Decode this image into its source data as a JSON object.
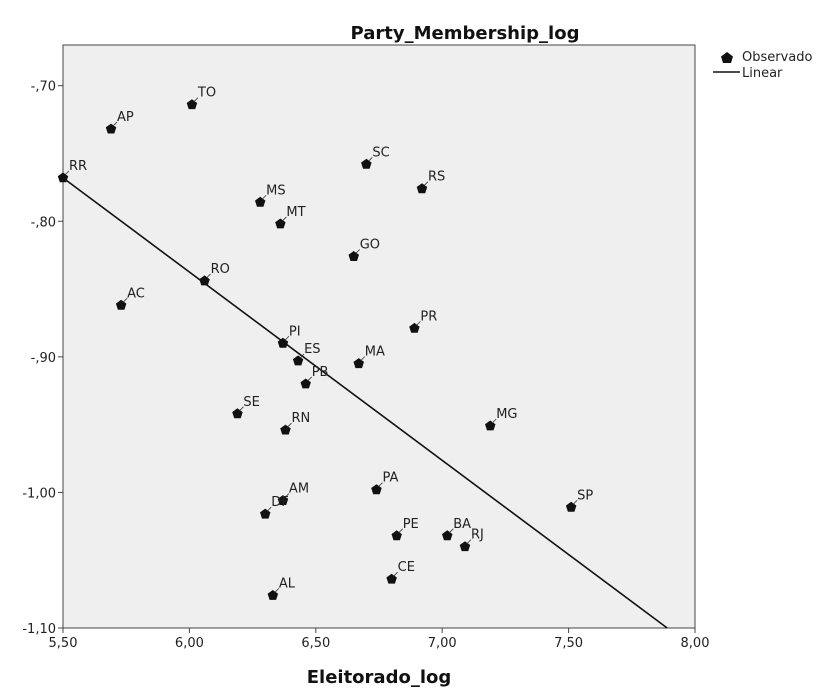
{
  "chart_data": {
    "type": "scatter",
    "title": "Party_Membership_log",
    "xlabel": "Eleitorado_log",
    "ylabel": "",
    "xlim": [
      5.5,
      8.0
    ],
    "ylim": [
      -1.1,
      -0.67
    ],
    "x_ticks": [
      5.5,
      6.0,
      6.5,
      7.0,
      7.5,
      8.0
    ],
    "x_tick_labels": [
      "5,50",
      "6,00",
      "6,50",
      "7,00",
      "7,50",
      "8,00"
    ],
    "y_ticks": [
      -0.7,
      -0.8,
      -0.9,
      -1.0,
      -1.1
    ],
    "y_tick_labels": [
      "-,70",
      "-,80",
      "-,90",
      "-1,00",
      "-1,10"
    ],
    "grid": false,
    "background": "#efefef",
    "legend": {
      "placement": "top-right-outside",
      "entries": [
        {
          "label": "Observado",
          "marker": "pentagon"
        },
        {
          "label": "Linear",
          "marker": "line"
        }
      ]
    },
    "points": [
      {
        "label": "TO",
        "x": 6.01,
        "y": -0.714
      },
      {
        "label": "AP",
        "x": 5.69,
        "y": -0.732
      },
      {
        "label": "RR",
        "x": 5.5,
        "y": -0.768
      },
      {
        "label": "SC",
        "x": 6.7,
        "y": -0.758
      },
      {
        "label": "RS",
        "x": 6.92,
        "y": -0.776
      },
      {
        "label": "MS",
        "x": 6.28,
        "y": -0.786
      },
      {
        "label": "MT",
        "x": 6.36,
        "y": -0.802
      },
      {
        "label": "GO",
        "x": 6.65,
        "y": -0.826
      },
      {
        "label": "RO",
        "x": 6.06,
        "y": -0.844
      },
      {
        "label": "AC",
        "x": 5.73,
        "y": -0.862
      },
      {
        "label": "PR",
        "x": 6.89,
        "y": -0.879
      },
      {
        "label": "PI",
        "x": 6.37,
        "y": -0.89
      },
      {
        "label": "ES",
        "x": 6.43,
        "y": -0.903
      },
      {
        "label": "MA",
        "x": 6.67,
        "y": -0.905
      },
      {
        "label": "PB",
        "x": 6.46,
        "y": -0.92
      },
      {
        "label": "SE",
        "x": 6.19,
        "y": -0.942
      },
      {
        "label": "RN",
        "x": 6.38,
        "y": -0.954
      },
      {
        "label": "MG",
        "x": 7.19,
        "y": -0.951
      },
      {
        "label": "PA",
        "x": 6.74,
        "y": -0.998
      },
      {
        "label": "AM",
        "x": 6.37,
        "y": -1.006
      },
      {
        "label": "DF",
        "x": 6.3,
        "y": -1.016
      },
      {
        "label": "SP",
        "x": 7.51,
        "y": -1.011
      },
      {
        "label": "PE",
        "x": 6.82,
        "y": -1.032
      },
      {
        "label": "BA",
        "x": 7.02,
        "y": -1.032
      },
      {
        "label": "RJ",
        "x": 7.09,
        "y": -1.04
      },
      {
        "label": "CE",
        "x": 6.8,
        "y": -1.064
      },
      {
        "label": "AL",
        "x": 6.33,
        "y": -1.076
      }
    ],
    "fit_line": {
      "x": [
        5.5,
        7.89
      ],
      "y": [
        -0.768,
        -1.1
      ]
    }
  }
}
